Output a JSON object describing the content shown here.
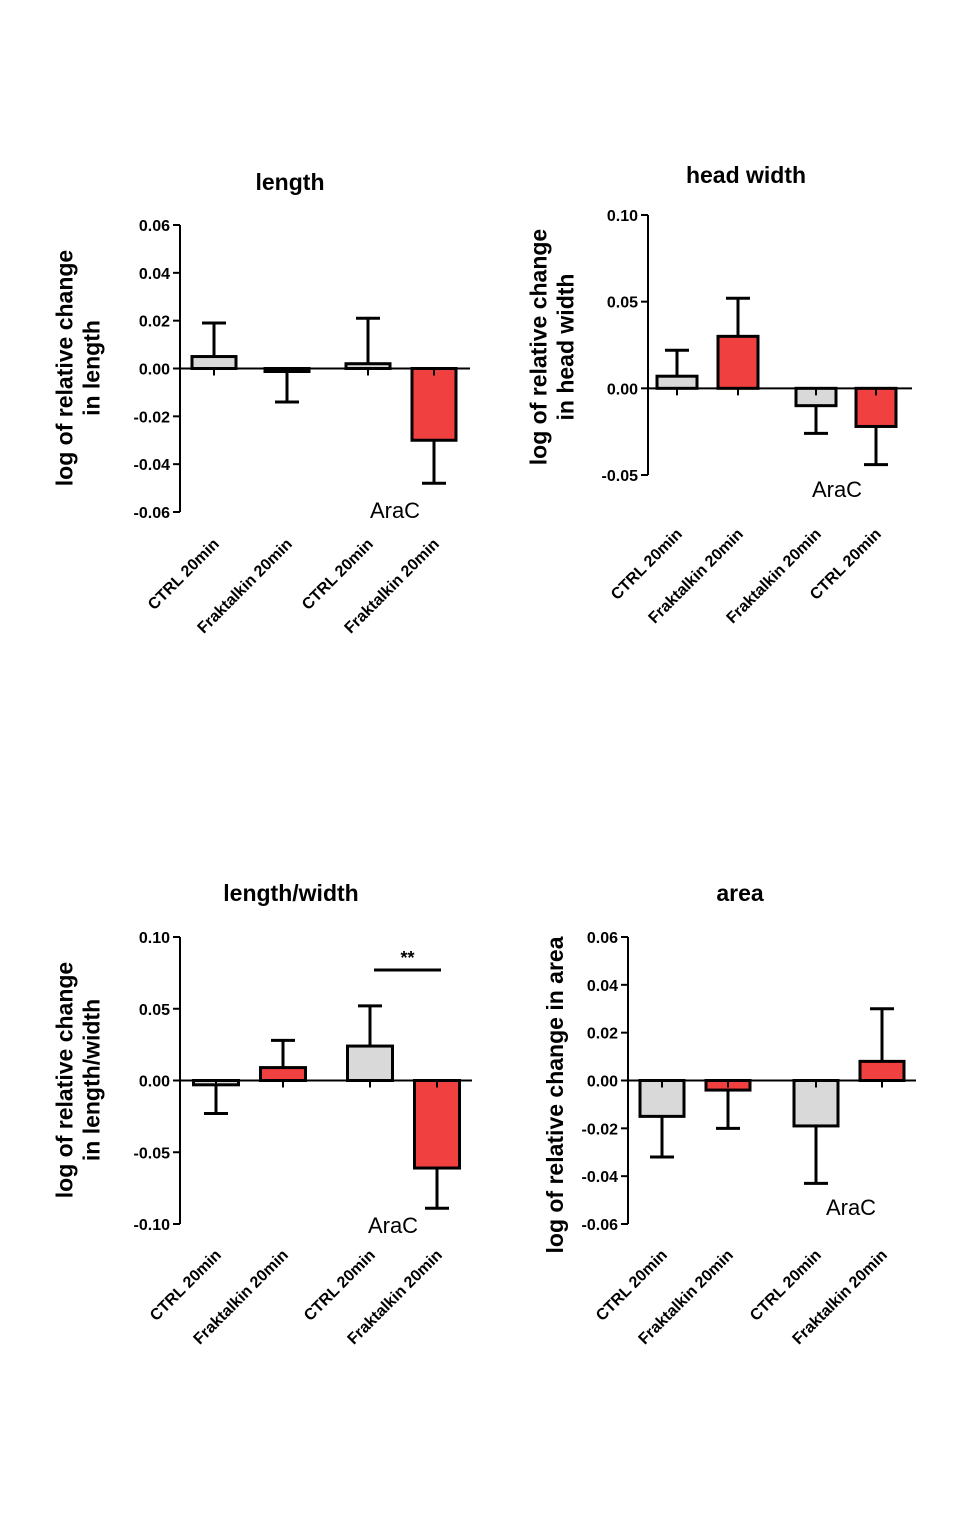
{
  "chart_data": [
    {
      "type": "bar",
      "title": "length",
      "ylabel": [
        "log of relative change",
        "in length"
      ],
      "categories": [
        "CTRL 20min",
        "Fraktalkin 20min",
        "CTRL 20min",
        "Fraktalkin 20min"
      ],
      "values": [
        0.005,
        -0.001,
        0.002,
        -0.03
      ],
      "errors": [
        0.014,
        0.013,
        0.019,
        0.018
      ],
      "bar_colors": [
        "#d9d9d9",
        "#f04040",
        "#d9d9d9",
        "#f04040"
      ],
      "ylim": [
        -0.06,
        0.06
      ],
      "yticks": [
        0.06,
        0.04,
        0.02,
        0.0,
        -0.02,
        -0.04,
        -0.06
      ],
      "ytick_labels": [
        "0.06",
        "0.04",
        "0.02",
        "0.00",
        "-0.02",
        "-0.04",
        "-0.06"
      ],
      "annotation": "AraC",
      "significance": null
    },
    {
      "type": "bar",
      "title": "head width",
      "ylabel": [
        "log of relative change",
        "in head width"
      ],
      "categories": [
        "CTRL 20min",
        "Fraktalkin 20min",
        "Fraktalkin 20min",
        "CTRL 20min"
      ],
      "values": [
        0.007,
        0.03,
        -0.01,
        -0.022
      ],
      "errors": [
        0.015,
        0.022,
        0.016,
        0.022
      ],
      "bar_colors": [
        "#d9d9d9",
        "#f04040",
        "#d9d9d9",
        "#f04040"
      ],
      "ylim": [
        -0.05,
        0.1
      ],
      "yticks": [
        0.1,
        0.05,
        0.0,
        -0.05
      ],
      "ytick_labels": [
        "0.10",
        "0.05",
        "0.00",
        "-0.05"
      ],
      "annotation": "AraC",
      "significance": null
    },
    {
      "type": "bar",
      "title": "length/width",
      "ylabel": [
        "log of relative change",
        "in length/width"
      ],
      "categories": [
        "CTRL 20min",
        "Fraktalkin 20min",
        "CTRL 20min",
        "Fraktalkin 20min"
      ],
      "values": [
        -0.003,
        0.009,
        0.024,
        -0.061
      ],
      "errors": [
        0.02,
        0.019,
        0.028,
        0.028
      ],
      "bar_colors": [
        "#d9d9d9",
        "#f04040",
        "#d9d9d9",
        "#f04040"
      ],
      "ylim": [
        -0.1,
        0.1
      ],
      "yticks": [
        0.1,
        0.05,
        0.0,
        -0.05,
        -0.1
      ],
      "ytick_labels": [
        "0.10",
        "0.05",
        "0.00",
        "-0.05",
        "-0.10"
      ],
      "annotation": "AraC",
      "significance": {
        "label": "**",
        "from": 2,
        "to": 3,
        "level": 0.077
      }
    },
    {
      "type": "bar",
      "title": "area",
      "ylabel": [
        "log of relative change in area"
      ],
      "categories": [
        "CTRL 20min",
        "Fraktalkin 20min",
        "CTRL 20min",
        "Fraktalkin 20min"
      ],
      "values": [
        -0.015,
        -0.004,
        -0.019,
        0.008
      ],
      "errors": [
        0.017,
        0.016,
        0.024,
        0.022
      ],
      "bar_colors": [
        "#d9d9d9",
        "#f04040",
        "#d9d9d9",
        "#f04040"
      ],
      "ylim": [
        -0.06,
        0.06
      ],
      "yticks": [
        0.06,
        0.04,
        0.02,
        0.0,
        -0.02,
        -0.04,
        -0.06
      ],
      "ytick_labels": [
        "0.06",
        "0.04",
        "0.02",
        "0.00",
        "-0.02",
        "-0.04",
        "-0.06"
      ],
      "annotation": "AraC",
      "significance": null
    }
  ]
}
